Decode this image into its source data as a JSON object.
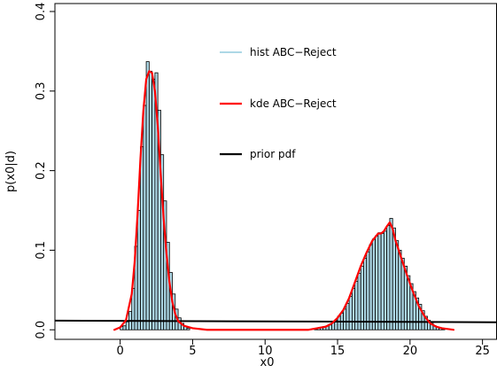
{
  "chart_data": {
    "type": "bar",
    "xlabel": "x0",
    "ylabel": "p(x0|d)",
    "xlim": [
      -4.5,
      26
    ],
    "ylim": [
      -0.012,
      0.41
    ],
    "x_ticks": [
      0,
      5,
      10,
      15,
      20,
      25
    ],
    "y_ticks": [
      0.0,
      0.1,
      0.2,
      0.3,
      0.4
    ],
    "x_tick_labels": [
      "0",
      "5",
      "10",
      "15",
      "20",
      "25"
    ],
    "y_tick_labels": [
      "0.0",
      "0.1",
      "0.2",
      "0.3",
      "0.4"
    ],
    "grid": false,
    "legend_position": "top-center",
    "series": [
      {
        "name": "hist ABC−Reject",
        "kind": "histogram",
        "color": "#add8e6",
        "edge_color": "#000000",
        "bin_width": 0.2,
        "bins": [
          {
            "x": 0.0,
            "y": 0.004
          },
          {
            "x": 0.2,
            "y": 0.005
          },
          {
            "x": 0.4,
            "y": 0.01
          },
          {
            "x": 0.6,
            "y": 0.023
          },
          {
            "x": 0.8,
            "y": 0.052
          },
          {
            "x": 1.0,
            "y": 0.105
          },
          {
            "x": 1.2,
            "y": 0.15
          },
          {
            "x": 1.4,
            "y": 0.23
          },
          {
            "x": 1.6,
            "y": 0.282
          },
          {
            "x": 1.8,
            "y": 0.337
          },
          {
            "x": 2.0,
            "y": 0.325
          },
          {
            "x": 2.2,
            "y": 0.315
          },
          {
            "x": 2.4,
            "y": 0.323
          },
          {
            "x": 2.6,
            "y": 0.276
          },
          {
            "x": 2.8,
            "y": 0.22
          },
          {
            "x": 3.0,
            "y": 0.162
          },
          {
            "x": 3.2,
            "y": 0.11
          },
          {
            "x": 3.4,
            "y": 0.072
          },
          {
            "x": 3.6,
            "y": 0.045
          },
          {
            "x": 3.8,
            "y": 0.026
          },
          {
            "x": 4.0,
            "y": 0.015
          },
          {
            "x": 4.2,
            "y": 0.008
          },
          {
            "x": 4.4,
            "y": 0.004
          },
          {
            "x": 4.6,
            "y": 0.002
          },
          {
            "x": 13.4,
            "y": 0.001
          },
          {
            "x": 13.6,
            "y": 0.002
          },
          {
            "x": 13.8,
            "y": 0.003
          },
          {
            "x": 14.0,
            "y": 0.004
          },
          {
            "x": 14.2,
            "y": 0.005
          },
          {
            "x": 14.4,
            "y": 0.006
          },
          {
            "x": 14.6,
            "y": 0.009
          },
          {
            "x": 14.8,
            "y": 0.012
          },
          {
            "x": 15.0,
            "y": 0.017
          },
          {
            "x": 15.2,
            "y": 0.021
          },
          {
            "x": 15.4,
            "y": 0.026
          },
          {
            "x": 15.6,
            "y": 0.033
          },
          {
            "x": 15.8,
            "y": 0.042
          },
          {
            "x": 16.0,
            "y": 0.052
          },
          {
            "x": 16.2,
            "y": 0.061
          },
          {
            "x": 16.4,
            "y": 0.071
          },
          {
            "x": 16.6,
            "y": 0.08
          },
          {
            "x": 16.8,
            "y": 0.09
          },
          {
            "x": 17.0,
            "y": 0.098
          },
          {
            "x": 17.2,
            "y": 0.107
          },
          {
            "x": 17.4,
            "y": 0.114
          },
          {
            "x": 17.6,
            "y": 0.118
          },
          {
            "x": 17.8,
            "y": 0.122
          },
          {
            "x": 18.0,
            "y": 0.121
          },
          {
            "x": 18.2,
            "y": 0.124
          },
          {
            "x": 18.4,
            "y": 0.131
          },
          {
            "x": 18.6,
            "y": 0.14
          },
          {
            "x": 18.8,
            "y": 0.128
          },
          {
            "x": 19.0,
            "y": 0.112
          },
          {
            "x": 19.2,
            "y": 0.1
          },
          {
            "x": 19.4,
            "y": 0.09
          },
          {
            "x": 19.6,
            "y": 0.08
          },
          {
            "x": 19.8,
            "y": 0.068
          },
          {
            "x": 20.0,
            "y": 0.058
          },
          {
            "x": 20.2,
            "y": 0.048
          },
          {
            "x": 20.4,
            "y": 0.04
          },
          {
            "x": 20.6,
            "y": 0.032
          },
          {
            "x": 20.8,
            "y": 0.024
          },
          {
            "x": 21.0,
            "y": 0.017
          },
          {
            "x": 21.2,
            "y": 0.012
          },
          {
            "x": 21.4,
            "y": 0.008
          },
          {
            "x": 21.6,
            "y": 0.005
          },
          {
            "x": 21.8,
            "y": 0.003
          },
          {
            "x": 22.0,
            "y": 0.002
          },
          {
            "x": 22.2,
            "y": 0.001
          }
        ]
      },
      {
        "name": "kde ABC−Reject",
        "kind": "line",
        "color": "#ff0000",
        "points": [
          [
            -0.4,
            0.0
          ],
          [
            0.0,
            0.003
          ],
          [
            0.4,
            0.012
          ],
          [
            0.8,
            0.045
          ],
          [
            1.0,
            0.085
          ],
          [
            1.2,
            0.145
          ],
          [
            1.4,
            0.215
          ],
          [
            1.6,
            0.275
          ],
          [
            1.8,
            0.315
          ],
          [
            2.0,
            0.325
          ],
          [
            2.2,
            0.323
          ],
          [
            2.4,
            0.3
          ],
          [
            2.6,
            0.255
          ],
          [
            2.8,
            0.195
          ],
          [
            3.0,
            0.14
          ],
          [
            3.2,
            0.095
          ],
          [
            3.4,
            0.06
          ],
          [
            3.6,
            0.035
          ],
          [
            3.8,
            0.02
          ],
          [
            4.0,
            0.011
          ],
          [
            4.4,
            0.005
          ],
          [
            5.0,
            0.002
          ],
          [
            6.0,
            0.0
          ],
          [
            13.0,
            0.0
          ],
          [
            13.6,
            0.002
          ],
          [
            14.2,
            0.004
          ],
          [
            14.6,
            0.008
          ],
          [
            15.0,
            0.015
          ],
          [
            15.4,
            0.025
          ],
          [
            15.8,
            0.04
          ],
          [
            16.2,
            0.06
          ],
          [
            16.6,
            0.08
          ],
          [
            17.0,
            0.097
          ],
          [
            17.4,
            0.112
          ],
          [
            17.8,
            0.121
          ],
          [
            18.0,
            0.121
          ],
          [
            18.2,
            0.124
          ],
          [
            18.4,
            0.13
          ],
          [
            18.6,
            0.135
          ],
          [
            18.8,
            0.127
          ],
          [
            19.0,
            0.112
          ],
          [
            19.4,
            0.09
          ],
          [
            19.8,
            0.068
          ],
          [
            20.2,
            0.048
          ],
          [
            20.6,
            0.03
          ],
          [
            21.0,
            0.017
          ],
          [
            21.4,
            0.008
          ],
          [
            21.8,
            0.004
          ],
          [
            22.2,
            0.002
          ],
          [
            23.0,
            0.0
          ]
        ]
      },
      {
        "name": "prior pdf",
        "kind": "line",
        "color": "#000000",
        "points": [
          [
            -4.5,
            0.0115
          ],
          [
            26.0,
            0.0095
          ]
        ]
      }
    ]
  }
}
